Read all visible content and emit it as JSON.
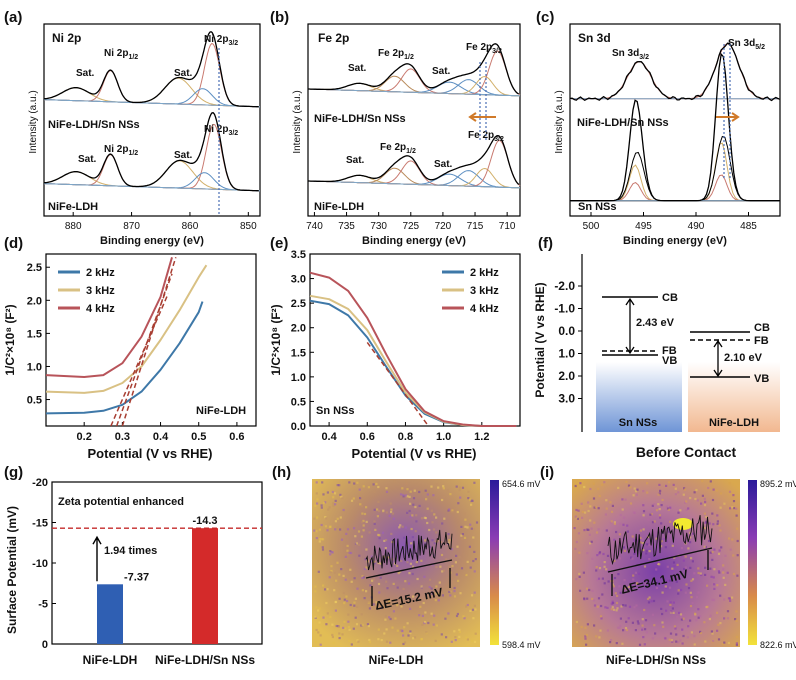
{
  "panels": {
    "a": {
      "letter": "(a)",
      "title": "Ni 2p",
      "xlabel": "Binding energy (eV)",
      "ylabel": "Intensity (a.u.)",
      "xticks": [
        "880",
        "870",
        "860",
        "850"
      ],
      "top_label": "NiFe-LDH/Sn NSs",
      "bottom_label": "NiFe-LDH",
      "peaks_top": [
        "Sat.",
        "Ni 2p1/2",
        "Sat.",
        "Ni 2p3/2"
      ],
      "peaks_bottom": [
        "Sat.",
        "Ni 2p1/2",
        "Sat.",
        "Ni 2p3/2"
      ]
    },
    "b": {
      "letter": "(b)",
      "title": "Fe 2p",
      "xlabel": "Binding energy (eV)",
      "ylabel": "Intensity (a.u.)",
      "xticks": [
        "740",
        "735",
        "730",
        "725",
        "720",
        "715",
        "710"
      ],
      "top_label": "NiFe-LDH/Sn NSs",
      "bottom_label": "NiFe-LDH",
      "peaks_top": [
        "Sat.",
        "Fe 2p1/2",
        "Sat.",
        "Fe 2p3/2"
      ],
      "peaks_bottom": [
        "Sat.",
        "Fe 2p1/2",
        "Sat.",
        "Fe 2p3/2"
      ]
    },
    "c": {
      "letter": "(c)",
      "title": "Sn 3d",
      "xlabel": "Binding energy (eV)",
      "ylabel": "Intensity (a.u.)",
      "xticks": [
        "500",
        "495",
        "490",
        "485"
      ],
      "top_label": "NiFe-LDH/Sn NSs",
      "bottom_label": "Sn NSs",
      "peaks_top": [
        "Sn 3d3/2",
        "Sn 3d5/2"
      ]
    },
    "d": {
      "letter": "(d)",
      "ylabel": "1/C²×10⁸ (F²)",
      "xlabel": "Potential (V vs RHE)",
      "sample": "NiFe-LDH",
      "xticks": [
        "0.2",
        "0.3",
        "0.4",
        "0.5",
        "0.6"
      ],
      "yticks": [
        "0.5",
        "1.0",
        "1.5",
        "2.0",
        "2.5"
      ]
    },
    "e": {
      "letter": "(e)",
      "ylabel": "1/C²×10⁸ (F²)",
      "xlabel": "Potential (V vs RHE)",
      "sample": "Sn NSs",
      "xticks": [
        "0.4",
        "0.6",
        "0.8",
        "1.0",
        "1.2"
      ],
      "yticks": [
        "0.0",
        "0.5",
        "1.0",
        "1.5",
        "2.0",
        "2.5",
        "3.0",
        "3.5"
      ]
    },
    "f": {
      "letter": "(f)",
      "ylabel": "Potential (V vs RHE)",
      "footer": "Before Contact",
      "yticks": [
        "-2.0",
        "-1.0",
        "0.0",
        "1.0",
        "2.0",
        "3.0"
      ],
      "sn": {
        "label": "Sn NSs",
        "cb": "CB",
        "fb": "FB",
        "vb": "VB",
        "gap": "2.43 eV"
      },
      "ldh": {
        "label": "NiFe-LDH",
        "cb": "CB",
        "fb": "FB",
        "vb": "VB",
        "gap": "2.10 eV"
      }
    },
    "g": {
      "letter": "(g)",
      "ylabel": "Surface Potential (mV)",
      "annotation": "Zeta potential enhanced",
      "ratio": "1.94 times",
      "yticks": [
        "-20",
        "-15",
        "-10",
        "-5",
        "0"
      ],
      "bars": [
        {
          "label": "NiFe-LDH",
          "value": -7.37,
          "text": "-7.37",
          "color": "#2f5fb3"
        },
        {
          "label": "NiFe-LDH/Sn NSs",
          "value": -14.3,
          "text": "-14.3",
          "color": "#d42a2a"
        }
      ]
    },
    "h": {
      "letter": "(h)",
      "caption": "NiFe-LDH",
      "delta": "ΔE=15.2 mV",
      "scale_max": "654.6 mV",
      "scale_min": "598.4 mV"
    },
    "i": {
      "letter": "(i)",
      "caption": "NiFe-LDH/Sn NSs",
      "delta": "ΔE=34.1 mV",
      "scale_max": "895.2 mV",
      "scale_min": "822.6 mV"
    }
  },
  "legend": [
    "2 kHz",
    "3 kHz",
    "4 kHz"
  ],
  "colors": {
    "blue": "#3e78a8",
    "gold": "#d9c184",
    "red": "#b8545a",
    "dash": "#a83e32",
    "peakRed": "#c97a70"
  },
  "chart_data": [
    {
      "type": "line",
      "title": "Ni 2p",
      "xlabel": "Binding energy (eV)",
      "ylabel": "Intensity (a.u.)",
      "xlim": [
        885,
        848
      ],
      "series": [
        {
          "name": "NiFe-LDH/Sn NSs",
          "peaks_eV": [
            879.5,
            873.6,
            862.0,
            856.2
          ]
        },
        {
          "name": "NiFe-LDH",
          "peaks_eV": [
            879.5,
            873.6,
            861.8,
            855.9
          ]
        }
      ]
    },
    {
      "type": "line",
      "title": "Fe 2p",
      "xlabel": "Binding energy (eV)",
      "ylabel": "Intensity (a.u.)",
      "xlim": [
        741,
        708
      ],
      "series": [
        {
          "name": "NiFe-LDH/Sn NSs",
          "peaks_eV": [
            733.0,
            725.0,
            718.5,
            711.5
          ]
        },
        {
          "name": "NiFe-LDH",
          "peaks_eV": [
            733.0,
            725.0,
            718.5,
            711.2
          ]
        }
      ]
    },
    {
      "type": "line",
      "title": "Sn 3d",
      "xlabel": "Binding energy (eV)",
      "ylabel": "Intensity (a.u.)",
      "xlim": [
        502,
        482
      ],
      "series": [
        {
          "name": "NiFe-LDH/Sn NSs",
          "peaks_eV": [
            495.4,
            487.0
          ]
        },
        {
          "name": "Sn NSs",
          "peaks_eV": [
            495.8,
            487.6
          ]
        }
      ]
    },
    {
      "type": "line",
      "xlabel": "Potential (V vs RHE)",
      "ylabel": "1/C²×10⁸ (F²)",
      "xlim": [
        0.1,
        0.65
      ],
      "ylim": [
        0.1,
        2.7
      ],
      "series": [
        {
          "name": "2 kHz",
          "x": [
            0.1,
            0.2,
            0.25,
            0.3,
            0.35,
            0.4,
            0.45,
            0.5,
            0.51
          ],
          "y": [
            0.29,
            0.3,
            0.33,
            0.42,
            0.62,
            0.95,
            1.35,
            1.82,
            1.98
          ]
        },
        {
          "name": "3 kHz",
          "x": [
            0.1,
            0.2,
            0.25,
            0.3,
            0.35,
            0.4,
            0.45,
            0.5,
            0.52
          ],
          "y": [
            0.62,
            0.6,
            0.63,
            0.75,
            1.0,
            1.4,
            1.85,
            2.35,
            2.53
          ]
        },
        {
          "name": "4 kHz",
          "x": [
            0.1,
            0.2,
            0.25,
            0.3,
            0.35,
            0.4,
            0.43
          ],
          "y": [
            0.87,
            0.84,
            0.87,
            1.05,
            1.45,
            2.05,
            2.65
          ]
        }
      ]
    },
    {
      "type": "line",
      "xlabel": "Potential (V vs RHE)",
      "ylabel": "1/C²×10⁸ (F²)",
      "xlim": [
        0.3,
        1.4
      ],
      "ylim": [
        0,
        3.5
      ],
      "series": [
        {
          "name": "2 kHz",
          "x": [
            0.3,
            0.4,
            0.5,
            0.6,
            0.7,
            0.8,
            0.9,
            1.0,
            1.1,
            1.2,
            1.38
          ],
          "y": [
            2.55,
            2.48,
            2.25,
            1.8,
            1.2,
            0.62,
            0.25,
            0.08,
            0.02,
            0.0,
            0.0
          ]
        },
        {
          "name": "3 kHz",
          "x": [
            0.3,
            0.4,
            0.5,
            0.6,
            0.7,
            0.8,
            0.9,
            1.0,
            1.1,
            1.2,
            1.38
          ],
          "y": [
            2.65,
            2.58,
            2.38,
            1.95,
            1.3,
            0.68,
            0.28,
            0.09,
            0.02,
            0.0,
            0.0
          ]
        },
        {
          "name": "4 kHz",
          "x": [
            0.3,
            0.4,
            0.5,
            0.6,
            0.7,
            0.8,
            0.9,
            1.0,
            1.1,
            1.2,
            1.38
          ],
          "y": [
            3.12,
            3.02,
            2.75,
            2.2,
            1.45,
            0.75,
            0.3,
            0.1,
            0.03,
            0.0,
            0.0
          ]
        }
      ]
    },
    {
      "type": "bar",
      "ylabel": "Surface Potential (mV)",
      "categories": [
        "NiFe-LDH",
        "NiFe-LDH/Sn NSs"
      ],
      "values": [
        -7.37,
        -14.3
      ],
      "ylim": [
        0,
        -20
      ]
    }
  ]
}
